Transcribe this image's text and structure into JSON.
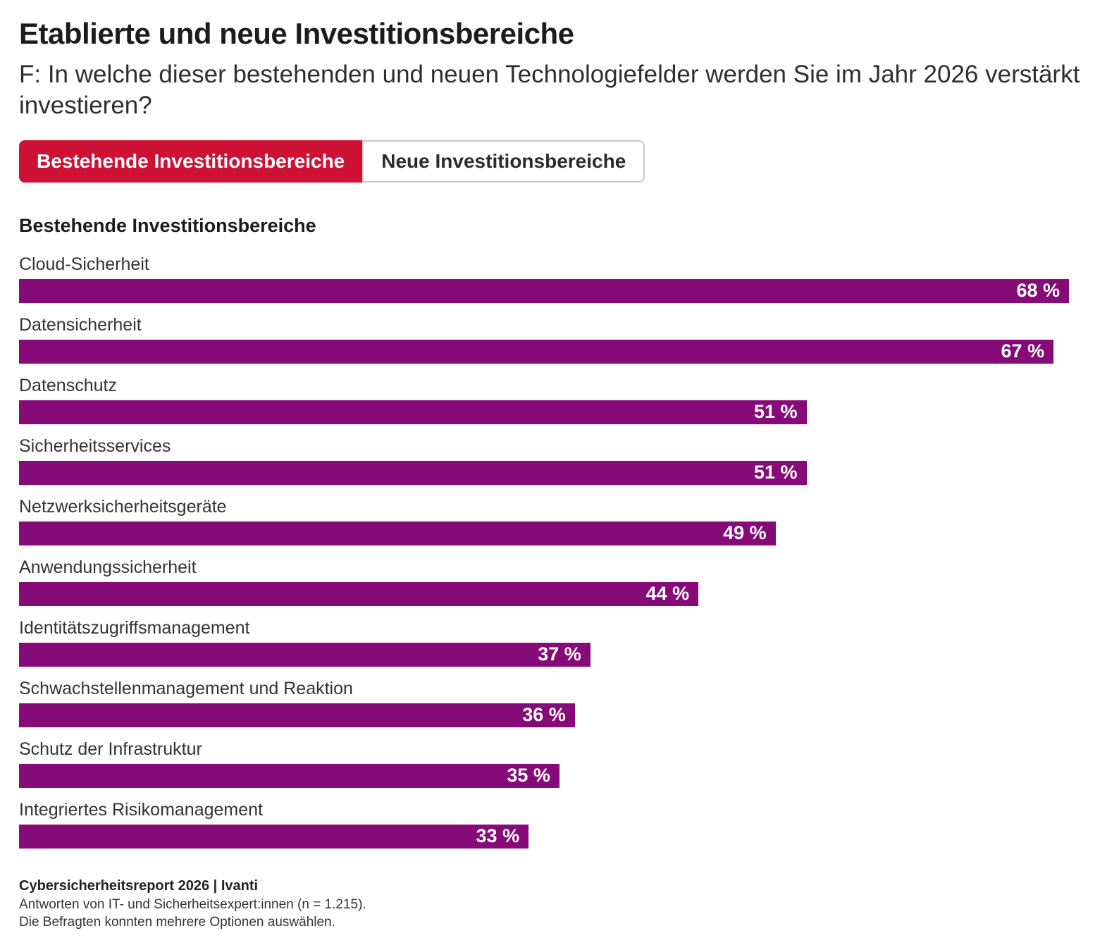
{
  "header": {
    "title": "Etablierte und neue Investitionsbereiche",
    "question": "F: In welche dieser bestehenden und neuen Technologiefelder werden Sie im Jahr 2026 verstärkt investieren?"
  },
  "tabs": [
    {
      "id": "bestehende",
      "label": "Bestehende Investitionsbereiche",
      "active": true
    },
    {
      "id": "neue",
      "label": "Neue Investitionsbereiche",
      "active": false
    }
  ],
  "section_heading": "Bestehende Investitionsbereiche",
  "chart_data": {
    "type": "bar",
    "orientation": "horizontal",
    "title": "Bestehende Investitionsbereiche",
    "categories": [
      "Cloud-Sicherheit",
      "Datensicherheit",
      "Datenschutz",
      "Sicherheitsservices",
      "Netzwerksicherheitsgeräte",
      "Anwendungssicherheit",
      "Identitätszugriffsmanagement",
      "Schwachstellenmanagement und Reaktion",
      "Schutz der Infrastruktur",
      "Integriertes Risikomanagement"
    ],
    "values": [
      68,
      67,
      51,
      51,
      49,
      44,
      37,
      36,
      35,
      33
    ],
    "value_suffix": " %",
    "unit": "percent",
    "axis_max": 68,
    "grid": false,
    "legend": false,
    "bar_color": "#860b78",
    "value_label_color": "#ffffff"
  },
  "footer": {
    "source": "Cybersicherheitsreport 2026 | Ivanti",
    "note1": "Antworten von IT- und Sicherheitsexpert:innen (n = 1.215).",
    "note2": "Die Befragten konnten mehrere Optionen auswählen."
  },
  "colors": {
    "active_tab_red": "#cd1236",
    "bar_purple": "#860b78",
    "tab_border_gray": "#c9c9c9"
  }
}
